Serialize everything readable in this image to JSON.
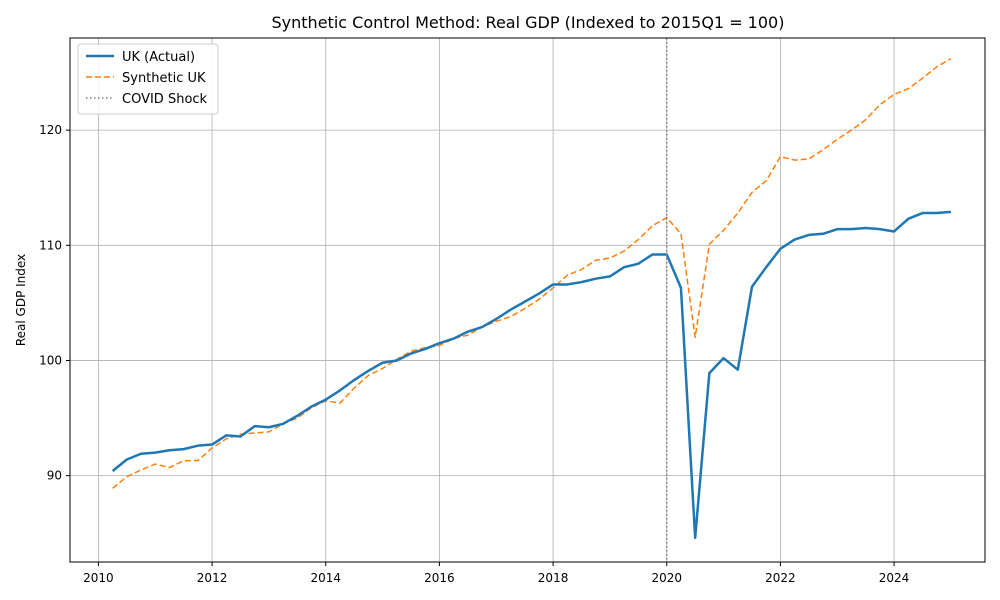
{
  "chart_data": {
    "type": "line",
    "title": "Synthetic Control Method: Real GDP (Indexed to 2015Q1 = 100)",
    "xlabel": "",
    "ylabel": "Real GDP Index",
    "xlim": [
      2009.5,
      2025.6
    ],
    "ylim": [
      82.5,
      128.0
    ],
    "xticks": [
      2010,
      2012,
      2014,
      2016,
      2018,
      2020,
      2022,
      2024
    ],
    "yticks": [
      90,
      100,
      110,
      120
    ],
    "grid": true,
    "legend_position": "top-left",
    "x": [
      2010.25,
      2010.5,
      2010.75,
      2011.0,
      2011.25,
      2011.5,
      2011.75,
      2012.0,
      2012.25,
      2012.5,
      2012.75,
      2013.0,
      2013.25,
      2013.5,
      2013.75,
      2014.0,
      2014.25,
      2014.5,
      2014.75,
      2015.0,
      2015.25,
      2015.5,
      2015.75,
      2016.0,
      2016.25,
      2016.5,
      2016.75,
      2017.0,
      2017.25,
      2017.5,
      2017.75,
      2018.0,
      2018.25,
      2018.5,
      2018.75,
      2019.0,
      2019.25,
      2019.5,
      2019.75,
      2020.0,
      2020.25,
      2020.5,
      2020.75,
      2021.0,
      2021.25,
      2021.5,
      2021.75,
      2022.0,
      2022.25,
      2022.5,
      2022.75,
      2023.0,
      2023.25,
      2023.5,
      2023.75,
      2024.0,
      2024.25,
      2024.5,
      2024.75,
      2025.0
    ],
    "series": [
      {
        "name": "UK (Actual)",
        "color": "#1f77b4",
        "style": "solid",
        "values": [
          90.4,
          91.4,
          91.9,
          92.0,
          92.2,
          92.3,
          92.6,
          92.7,
          93.5,
          93.4,
          94.3,
          94.2,
          94.5,
          95.2,
          96.0,
          96.6,
          97.4,
          98.3,
          99.1,
          99.8,
          100.0,
          100.6,
          101.0,
          101.5,
          101.9,
          102.5,
          102.9,
          103.6,
          104.4,
          105.1,
          105.8,
          106.6,
          106.6,
          106.8,
          107.1,
          107.3,
          108.1,
          108.4,
          109.2,
          109.2,
          106.3,
          84.6,
          98.9,
          100.2,
          99.2,
          106.4,
          108.1,
          109.7,
          110.5,
          110.9,
          111.0,
          111.4,
          111.4,
          111.5,
          111.4,
          111.2,
          112.3,
          112.8,
          112.8,
          112.9
        ]
      },
      {
        "name": "Synthetic UK",
        "color": "#ff7f0e",
        "style": "dashed",
        "values": [
          88.9,
          89.9,
          90.5,
          91.0,
          90.7,
          91.3,
          91.3,
          92.4,
          93.2,
          93.6,
          93.7,
          93.8,
          94.5,
          95.0,
          95.9,
          96.5,
          96.3,
          97.6,
          98.7,
          99.3,
          100.1,
          100.8,
          101.1,
          101.3,
          101.9,
          102.2,
          102.9,
          103.4,
          103.8,
          104.5,
          105.3,
          106.3,
          107.4,
          107.9,
          108.7,
          108.9,
          109.5,
          110.5,
          111.7,
          112.4,
          111.0,
          102.0,
          110.1,
          111.3,
          112.8,
          114.6,
          115.6,
          117.7,
          117.4,
          117.5,
          118.3,
          119.2,
          120.0,
          120.9,
          122.2,
          123.1,
          123.6,
          124.5,
          125.5,
          126.2
        ]
      }
    ],
    "annotations": [
      {
        "name": "COVID Shock",
        "type": "vline",
        "x": 2020.0,
        "color": "#7f7f7f",
        "style": "dotted"
      }
    ]
  }
}
